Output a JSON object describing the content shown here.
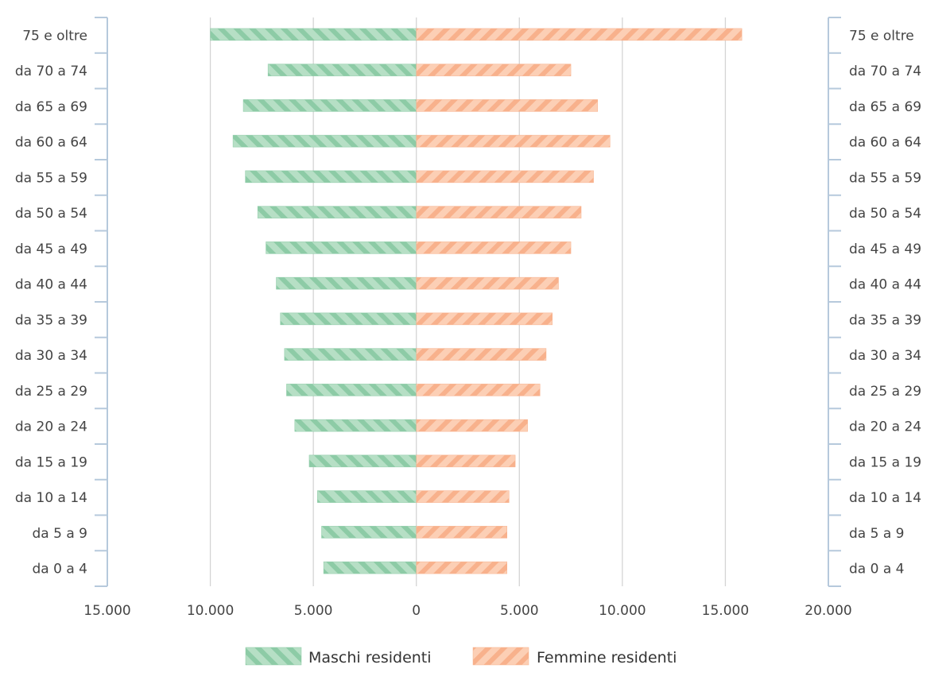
{
  "chart_data": {
    "type": "bar",
    "orientation": "horizontal-population-pyramid",
    "categories": [
      "75 e oltre",
      "da 70 a 74",
      "da 65 a 69",
      "da 60 a 64",
      "da 55 a 59",
      "da 50 a 54",
      "da 45 a 49",
      "da 40 a 44",
      "da 35 a 39",
      "da 30 a 34",
      "da 25 a 29",
      "da 20 a 24",
      "da 15 a 19",
      "da 10 a 14",
      "da 5 a 9",
      "da 0 a 4"
    ],
    "series": [
      {
        "name": "Maschi residenti",
        "color": "#a8d8b9",
        "stripe_color": "#7cc39a",
        "side": "left",
        "values": [
          10000,
          7200,
          8400,
          8900,
          8300,
          7700,
          7300,
          6800,
          6600,
          6400,
          6300,
          5900,
          5200,
          4800,
          4600,
          4500
        ]
      },
      {
        "name": "Femmine residenti",
        "color": "#fbc7a8",
        "stripe_color": "#f7a77c",
        "side": "right",
        "values": [
          15800,
          7500,
          8800,
          9400,
          8600,
          8000,
          7500,
          6900,
          6600,
          6300,
          6000,
          5400,
          4800,
          4500,
          4400,
          4400
        ]
      }
    ],
    "x_ticks": [
      "15.000",
      "10.000",
      "5.000",
      "0",
      "5.000",
      "10.000",
      "15.000",
      "20.000"
    ],
    "xlim": [
      -15000,
      20000
    ],
    "grid": true,
    "legend_position": "bottom-center",
    "title": "",
    "xlabel": "",
    "ylabel": ""
  }
}
